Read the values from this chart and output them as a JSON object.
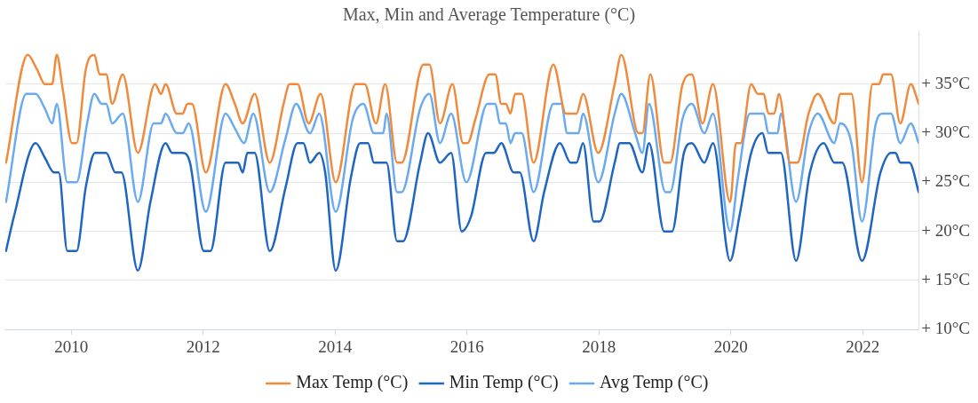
{
  "chart_data": {
    "type": "line",
    "title": "Max, Min and Average Temperature (°C)",
    "xlim": [
      2009,
      2022.85
    ],
    "xticks": [
      2010,
      2012,
      2014,
      2016,
      2018,
      2020,
      2022
    ],
    "ylim": [
      10,
      40.5
    ],
    "yticks": [
      {
        "value": 10,
        "label": "+ 10°C"
      },
      {
        "value": 15,
        "label": "+ 15°C"
      },
      {
        "value": 20,
        "label": "+ 20°C"
      },
      {
        "value": 25,
        "label": "+ 25°C"
      },
      {
        "value": 30,
        "label": "+ 30°C"
      },
      {
        "value": 35,
        "label": "+ 35°C"
      }
    ],
    "grid": "y",
    "legend": "bottom",
    "marker": "none",
    "line_style": "solid",
    "series": [
      {
        "name": "Max Temp (°C)",
        "color": "#f08a3c",
        "x": [
          2009.01,
          2009.34,
          2009.48,
          2009.6,
          2009.71,
          2009.78,
          2009.87,
          2010.01,
          2010.08,
          2010.22,
          2010.35,
          2010.43,
          2010.53,
          2010.62,
          2010.78,
          2011.01,
          2011.27,
          2011.36,
          2011.43,
          2011.6,
          2011.69,
          2011.76,
          2011.83,
          2012.04,
          2012.34,
          2012.48,
          2012.6,
          2012.78,
          2013.01,
          2013.22,
          2013.31,
          2013.43,
          2013.6,
          2013.78,
          2014.01,
          2014.31,
          2014.45,
          2014.62,
          2014.76,
          2014.94,
          2015.01,
          2015.34,
          2015.43,
          2015.59,
          2015.78,
          2015.94,
          2016.01,
          2016.13,
          2016.34,
          2016.43,
          2016.52,
          2016.59,
          2016.66,
          2016.73,
          2016.83,
          2017.01,
          2017.31,
          2017.5,
          2017.66,
          2017.76,
          2017.99,
          2018.24,
          2018.34,
          2018.6,
          2018.66,
          2018.78,
          2018.99,
          2019.08,
          2019.27,
          2019.41,
          2019.57,
          2019.73,
          2019.99,
          2020.08,
          2020.15,
          2020.31,
          2020.41,
          2020.5,
          2020.57,
          2020.66,
          2020.73,
          2020.9,
          2021.01,
          2021.18,
          2021.32,
          2021.57,
          2021.66,
          2021.83,
          2021.99,
          2022.15,
          2022.25,
          2022.31,
          2022.43,
          2022.57,
          2022.73,
          2022.85
        ],
        "values": [
          27,
          38,
          36.5,
          35,
          35,
          38,
          34.5,
          29,
          29,
          36.5,
          38,
          36,
          36,
          33,
          36,
          28,
          35,
          34,
          35,
          32,
          32,
          33,
          33,
          26,
          35,
          33,
          31,
          34,
          27,
          33,
          35,
          35,
          31,
          34,
          25,
          35,
          35,
          31,
          35,
          27,
          27,
          37,
          37,
          31,
          35,
          29,
          29,
          31.5,
          36,
          36,
          33,
          33,
          32,
          34,
          34,
          27,
          37,
          32,
          32,
          34,
          28,
          35,
          38,
          30,
          30,
          36,
          27,
          27,
          35,
          36,
          31,
          35,
          23,
          29,
          29,
          35,
          34,
          34,
          32,
          32,
          34,
          27,
          27,
          32,
          34,
          31,
          34,
          34,
          25,
          35,
          35,
          36,
          36,
          31,
          35,
          33
        ]
      },
      {
        "name": "Min Temp (°C)",
        "color": "#1f66c2",
        "x": [
          2009.01,
          2009.13,
          2009.46,
          2009.6,
          2009.74,
          2009.81,
          2009.94,
          2010.08,
          2010.22,
          2010.36,
          2010.53,
          2010.67,
          2010.76,
          2011.01,
          2011.2,
          2011.43,
          2011.53,
          2011.69,
          2011.8,
          2012.01,
          2012.11,
          2012.34,
          2012.53,
          2012.6,
          2012.67,
          2012.78,
          2013.01,
          2013.25,
          2013.43,
          2013.52,
          2013.62,
          2013.76,
          2013.85,
          2014.01,
          2014.24,
          2014.38,
          2014.5,
          2014.59,
          2014.78,
          2014.94,
          2015.03,
          2015.29,
          2015.41,
          2015.59,
          2015.76,
          2015.92,
          2016.06,
          2016.29,
          2016.41,
          2016.52,
          2016.71,
          2016.8,
          2017.01,
          2017.17,
          2017.41,
          2017.57,
          2017.66,
          2017.76,
          2017.92,
          2018.01,
          2018.24,
          2018.32,
          2018.46,
          2018.66,
          2018.76,
          2018.99,
          2019.11,
          2019.29,
          2019.41,
          2019.6,
          2019.73,
          2019.99,
          2020.13,
          2020.31,
          2020.48,
          2020.57,
          2020.76,
          2020.99,
          2021.2,
          2021.41,
          2021.57,
          2021.69,
          2021.99,
          2022.27,
          2022.43,
          2022.5,
          2022.57,
          2022.71,
          2022.85
        ],
        "values": [
          18,
          21.5,
          29,
          27.5,
          26,
          26,
          18,
          18,
          24.5,
          28,
          28,
          26,
          26,
          16,
          23,
          29,
          28,
          28,
          27,
          18,
          18,
          27,
          27,
          26,
          28,
          28,
          18,
          24.5,
          29,
          29,
          27,
          28,
          26,
          16,
          25.5,
          29,
          29,
          27,
          27,
          19,
          19,
          27,
          30,
          27,
          28,
          20,
          21.5,
          28,
          28,
          29,
          26,
          26,
          19,
          24,
          29,
          27,
          27,
          29,
          21,
          21,
          27,
          29,
          29,
          26,
          29,
          20,
          20,
          28,
          29,
          27,
          29,
          17,
          21.5,
          28,
          30,
          28,
          28,
          17,
          26,
          29,
          27,
          27,
          17,
          26,
          28,
          28,
          27,
          27,
          24
        ]
      },
      {
        "name": "Avg Temp (°C)",
        "color": "#6aaaf0",
        "x": [
          2009.01,
          2009.32,
          2009.46,
          2009.6,
          2009.71,
          2009.78,
          2009.94,
          2010.08,
          2010.24,
          2010.35,
          2010.46,
          2010.53,
          2010.62,
          2010.78,
          2011.01,
          2011.25,
          2011.36,
          2011.43,
          2011.6,
          2011.69,
          2011.78,
          2012.04,
          2012.34,
          2012.48,
          2012.62,
          2012.76,
          2013.01,
          2013.25,
          2013.41,
          2013.62,
          2013.76,
          2014.01,
          2014.27,
          2014.43,
          2014.59,
          2014.73,
          2014.78,
          2014.94,
          2015.01,
          2015.29,
          2015.43,
          2015.59,
          2015.76,
          2015.99,
          2016.31,
          2016.43,
          2016.5,
          2016.59,
          2016.66,
          2016.73,
          2016.83,
          2017.01,
          2017.31,
          2017.43,
          2017.52,
          2017.69,
          2017.76,
          2017.99,
          2018.24,
          2018.34,
          2018.55,
          2018.66,
          2018.76,
          2019.01,
          2019.08,
          2019.27,
          2019.41,
          2019.6,
          2019.73,
          2019.99,
          2020.11,
          2020.29,
          2020.5,
          2020.57,
          2020.71,
          2020.76,
          2020.99,
          2021.18,
          2021.32,
          2021.57,
          2021.66,
          2021.83,
          2021.99,
          2022.2,
          2022.31,
          2022.43,
          2022.57,
          2022.73,
          2022.85
        ],
        "values": [
          23,
          34,
          34,
          32.5,
          31,
          33,
          25,
          25,
          31,
          34,
          33,
          33,
          31,
          32,
          23,
          31,
          31,
          32,
          30,
          30,
          31,
          22,
          32,
          30.5,
          29,
          32,
          24,
          29.5,
          33,
          30,
          32,
          22,
          31.5,
          33,
          30,
          30,
          32,
          24,
          24,
          32.5,
          34,
          29,
          32,
          25,
          33,
          33,
          31,
          31,
          29,
          30,
          30,
          24,
          33,
          33,
          30,
          30,
          32,
          25,
          32,
          34,
          30,
          28,
          33,
          24,
          24,
          31.5,
          33,
          30,
          32,
          20,
          25.5,
          32,
          32,
          30,
          30,
          32,
          23,
          30,
          32,
          29,
          31,
          29,
          21,
          31,
          32,
          32,
          29,
          31,
          29
        ]
      }
    ]
  }
}
